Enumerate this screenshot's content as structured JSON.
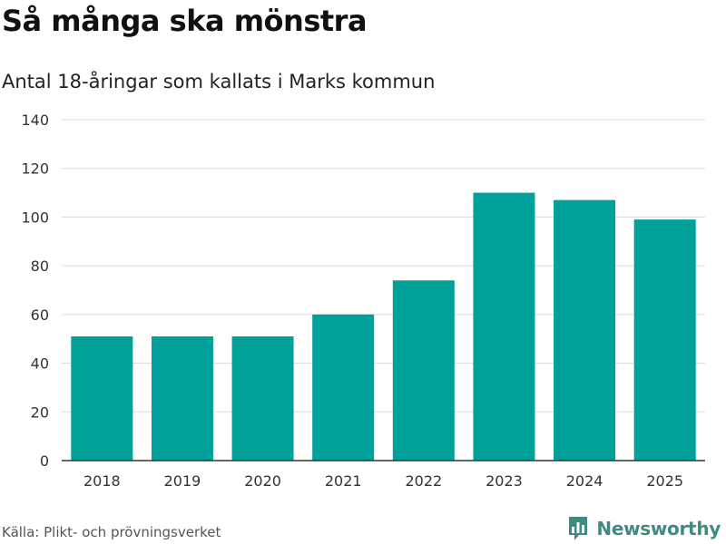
{
  "header": {
    "title": "Så många ska mönstra",
    "subtitle": "Antal 18-åringar som kallats i Marks kommun"
  },
  "footer": {
    "source": "Källa: Plikt- och prövningsverket",
    "brand": "Newsworthy",
    "brand_color": "#3f8b84"
  },
  "icons": {
    "brand_logo": "bar-chart-icon"
  },
  "colors": {
    "bar": "#00a19a",
    "grid": "#dcdcdc",
    "axis": "#333333"
  },
  "chart_data": {
    "type": "bar",
    "title": "Så många ska mönstra",
    "subtitle": "Antal 18-åringar som kallats i Marks kommun",
    "xlabel": "",
    "ylabel": "",
    "categories": [
      "2018",
      "2019",
      "2020",
      "2021",
      "2022",
      "2023",
      "2024",
      "2025"
    ],
    "values": [
      51,
      51,
      51,
      60,
      74,
      110,
      107,
      99
    ],
    "ylim": [
      0,
      140
    ],
    "yticks": [
      "0",
      "20",
      "40",
      "60",
      "80",
      "100",
      "120",
      "140"
    ],
    "ytick_values": [
      0,
      20,
      40,
      60,
      80,
      100,
      120,
      140
    ],
    "grid": true,
    "legend": "none"
  }
}
